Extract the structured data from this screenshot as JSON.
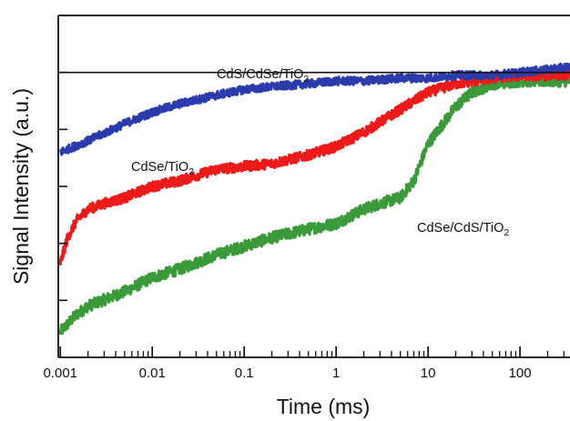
{
  "chart_data": {
    "type": "line",
    "title": "",
    "xlabel": "Time (ms)",
    "ylabel": "Signal Intensity (a.u.)",
    "x_scale": "log",
    "xlim": [
      0.00095,
      350
    ],
    "ylim": [
      0,
      1.2
    ],
    "x_tick_labels": [
      "0.001",
      "0.01",
      "0.1",
      "1",
      "10",
      "100"
    ],
    "x_tick_values": [
      0.001,
      0.01,
      0.1,
      1,
      10,
      100
    ],
    "grid": false,
    "colors": {
      "blue": "#2b3bab",
      "red": "#ee1a1a",
      "green": "#3a9a3a",
      "axis": "#111111"
    },
    "reference_line": {
      "y": 1.0,
      "label_main": "CdS/CdSe/TiO",
      "label_sub": "2"
    },
    "series": [
      {
        "label_main": "CdS/CdSe/TiO",
        "label_sub": "2",
        "color": "#2b3bab",
        "x": [
          0.001,
          0.002,
          0.005,
          0.01,
          0.02,
          0.05,
          0.1,
          0.2,
          0.5,
          1,
          2,
          5,
          10,
          20,
          50,
          100,
          200,
          350
        ],
        "y": [
          0.72,
          0.76,
          0.82,
          0.86,
          0.89,
          0.92,
          0.94,
          0.95,
          0.96,
          0.97,
          0.97,
          0.98,
          0.98,
          0.99,
          0.99,
          1.0,
          1.01,
          1.02
        ]
      },
      {
        "label_main": "CdSe/TiO",
        "label_sub": "2",
        "color": "#ee1a1a",
        "x": [
          0.001,
          0.0012,
          0.0015,
          0.002,
          0.003,
          0.005,
          0.01,
          0.02,
          0.05,
          0.1,
          0.2,
          0.5,
          1,
          2,
          5,
          10,
          20,
          50,
          100,
          200,
          350
        ],
        "y": [
          0.33,
          0.42,
          0.48,
          0.52,
          0.54,
          0.56,
          0.6,
          0.62,
          0.66,
          0.67,
          0.68,
          0.71,
          0.74,
          0.79,
          0.87,
          0.93,
          0.96,
          0.98,
          0.99,
          0.99,
          0.99
        ]
      },
      {
        "label_main": "CdSe/CdS/TiO",
        "label_sub": "2",
        "color": "#3a9a3a",
        "x": [
          0.001,
          0.0015,
          0.002,
          0.005,
          0.01,
          0.02,
          0.05,
          0.1,
          0.2,
          0.5,
          1,
          2,
          3,
          5,
          7,
          10,
          20,
          30,
          50,
          100,
          200,
          350
        ],
        "y": [
          0.09,
          0.15,
          0.18,
          0.23,
          0.28,
          0.31,
          0.36,
          0.39,
          0.42,
          0.45,
          0.47,
          0.52,
          0.54,
          0.56,
          0.62,
          0.75,
          0.88,
          0.93,
          0.96,
          0.97,
          0.97,
          0.97
        ]
      }
    ]
  }
}
